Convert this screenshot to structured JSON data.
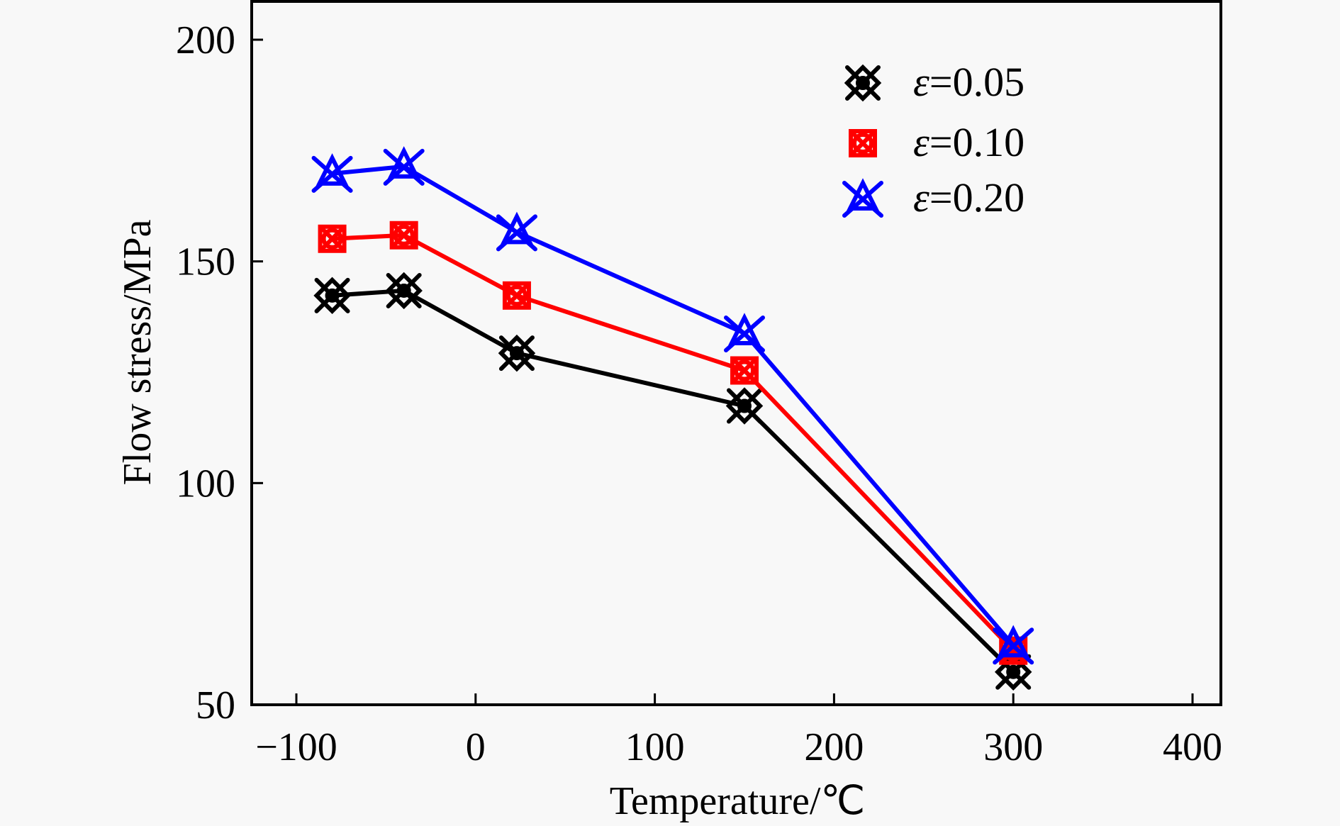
{
  "chart_data": {
    "type": "line",
    "title": "",
    "xlabel": "Temperature/℃",
    "ylabel": "Flow stress/MPa",
    "xlim": [
      -125,
      435
    ],
    "ylim": [
      50,
      208
    ],
    "xticks": [
      -100,
      0,
      100,
      200,
      300,
      400
    ],
    "xtick_labels": [
      "−100",
      "0",
      "100",
      "200",
      "300",
      "400"
    ],
    "yticks": [
      50,
      100,
      150,
      200
    ],
    "ytick_labels": [
      "50",
      "100",
      "150",
      "200"
    ],
    "grid": false,
    "legend_position": "top-right",
    "x": [
      -80,
      -40,
      23,
      150,
      300
    ],
    "series": [
      {
        "name": "ε=0.05",
        "prefix": "ε",
        "suffix": "=0.05",
        "color": "#000000",
        "marker": "cross-diamond",
        "values": [
          142.3,
          143.4,
          129.3,
          117.4,
          57.4
        ]
      },
      {
        "name": "ε=0.10",
        "prefix": "ε",
        "suffix": "=0.10",
        "color": "#ff0000",
        "marker": "boxed-x",
        "values": [
          155.1,
          155.9,
          142.3,
          125.4,
          62.2
        ]
      },
      {
        "name": "ε=0.20",
        "prefix": "ε",
        "suffix": "=0.20",
        "color": "#0000ff",
        "marker": "star-triangle",
        "values": [
          169.8,
          171.4,
          156.6,
          133.8,
          63.4
        ]
      }
    ]
  }
}
